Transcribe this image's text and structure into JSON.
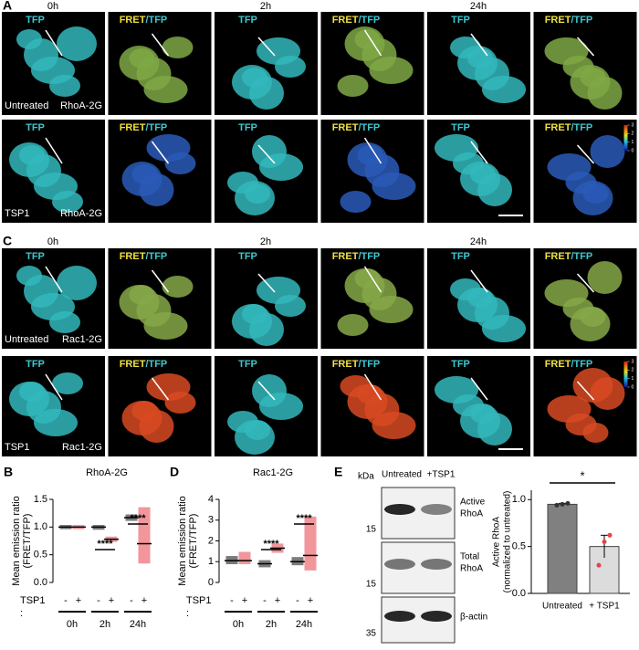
{
  "panel_a": {
    "letter": "A",
    "times": [
      "0h",
      "2h",
      "24h"
    ],
    "tfp": "TFP",
    "fret": "FRET",
    "slash_tfp": "/TFP",
    "rows": [
      {
        "condition": "Untreated",
        "sensor": "RhoA-2G"
      },
      {
        "condition": "TSP1",
        "sensor": "RhoA-2G"
      }
    ],
    "colorbar_ticks": [
      3,
      2,
      1,
      0
    ]
  },
  "panel_c": {
    "letter": "C",
    "times": [
      "0h",
      "2h",
      "24h"
    ],
    "tfp": "TFP",
    "fret": "FRET",
    "slash_tfp": "/TFP",
    "rows": [
      {
        "condition": "Untreated",
        "sensor": "Rac1-2G"
      },
      {
        "condition": "TSP1",
        "sensor": "Rac1-2G"
      }
    ],
    "colorbar_ticks": [
      3,
      2,
      1,
      0
    ]
  },
  "panel_b": {
    "letter": "B",
    "title": "RhoA-2G",
    "ylabel": [
      "Mean emission ratio",
      "(FRET/TFP)"
    ],
    "ylim": [
      0,
      1.5
    ],
    "yticks": [
      {
        "value": 0,
        "label": "0.0"
      },
      {
        "value": 0.5,
        "label": "0.5"
      },
      {
        "value": 1,
        "label": "1.0"
      },
      {
        "value": 1.5,
        "label": "1.5"
      }
    ],
    "groups": [
      "0h",
      "2h",
      "24h"
    ],
    "treatment": "TSP1",
    "colon": ":",
    "signs": [
      "-",
      "+",
      "-",
      "+",
      "-",
      "+"
    ],
    "colors": [
      "#111111",
      "#e8424a"
    ],
    "medians": [
      1.0,
      1.0,
      1.0,
      0.78,
      1.17,
      0.7
    ],
    "low": [
      0.97,
      0.97,
      0.96,
      0.74,
      1.12,
      0.35
    ],
    "high": [
      1.03,
      1.03,
      1.03,
      0.82,
      1.22,
      1.35
    ],
    "stars": [
      "****",
      "****"
    ]
  },
  "panel_d": {
    "letter": "D",
    "title": "Rac1-2G",
    "ylabel": [
      "Mean emission ratio",
      "(FRET/TFP)"
    ],
    "ylim": [
      0,
      4
    ],
    "yticks": [
      0,
      1,
      2,
      3,
      4
    ],
    "groups": [
      "0h",
      "2h",
      "24h"
    ],
    "treatment": "TSP1",
    "colon": ":",
    "signs": [
      "-",
      "+",
      "-",
      "+",
      "-",
      "+"
    ],
    "colors": [
      "#111111",
      "#e8424a"
    ],
    "medians": [
      1.05,
      1.05,
      0.9,
      1.65,
      1.0,
      1.3
    ],
    "low": [
      0.9,
      0.9,
      0.75,
      1.45,
      0.85,
      0.6
    ],
    "high": [
      1.25,
      1.45,
      1.05,
      1.85,
      1.2,
      3.15
    ],
    "stars": [
      "****",
      "****"
    ]
  },
  "panel_e": {
    "letter": "E",
    "lanes": [
      "Untreated",
      "+TSP1"
    ],
    "kda": "kDa",
    "markers": [
      "15",
      "15",
      "35"
    ],
    "bands": [
      [
        "Active",
        "RhoA"
      ],
      [
        "Total",
        "RhoA"
      ],
      [
        "β-actin"
      ]
    ],
    "ylabel": [
      "Active RhoA",
      "(normalized to untreated)"
    ],
    "ylim": [
      0,
      1.1
    ],
    "yticks": [
      {
        "value": 0,
        "label": "0.0"
      },
      {
        "value": 0.5,
        "label": "0.5"
      },
      {
        "value": 1,
        "label": "1.0"
      }
    ],
    "categories": [
      "Untreated",
      "+ TSP1"
    ],
    "values": [
      0.95,
      0.5
    ],
    "errors": [
      0.01,
      0.12
    ],
    "colors": [
      "#808080",
      "#dcdcdc"
    ],
    "points": [
      [
        0.94,
        0.95,
        0.96
      ],
      [
        0.3,
        0.55,
        0.62
      ]
    ],
    "star": "*"
  }
}
